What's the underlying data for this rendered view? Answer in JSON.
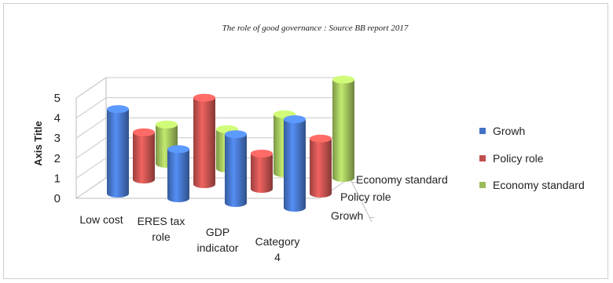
{
  "chart_data": {
    "type": "bar",
    "subtype": "3d-column",
    "title": "The role of good governance : Source BB report 2017",
    "ylabel": "Axis Title",
    "xlabel": "",
    "ylim": [
      0,
      5
    ],
    "yticks": [
      "0",
      "1",
      "2",
      "3",
      "4",
      "5"
    ],
    "categories": [
      "Low cost",
      "ERES tax role",
      "GDP indicator",
      "Category 4"
    ],
    "series": [
      {
        "name": "Growh",
        "color": "#4472C4",
        "values": [
          4.3,
          2.5,
          3.5,
          4.5
        ]
      },
      {
        "name": "Policy role",
        "color": "#C0504D",
        "values": [
          2.4,
          4.4,
          1.8,
          2.8
        ]
      },
      {
        "name": "Economy standard",
        "color": "#9BBB59",
        "values": [
          2.0,
          2.0,
          3.0,
          5.0
        ]
      }
    ],
    "depth_labels": [
      "Economy standard",
      "Policy role",
      "Growh"
    ],
    "legend_position": "right",
    "grid": true
  }
}
